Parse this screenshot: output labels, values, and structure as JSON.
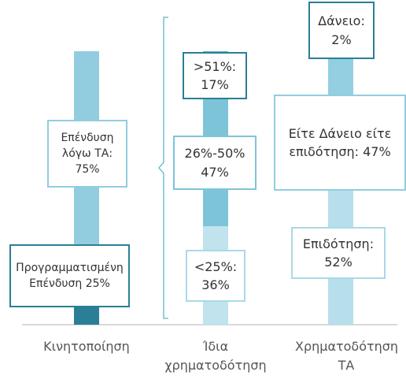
{
  "chart_data": {
    "type": "stacked_bar",
    "categories": [
      "Κινητοποίηση",
      "Ίδια χρηματοδότηση",
      "Χρηματοδότηση ΤΑ"
    ],
    "bars": [
      {
        "segments": [
          {
            "name": "Προγραμματισμένη Επένδυση",
            "value": 25,
            "value_label": "25%",
            "color": "#2a7f96"
          },
          {
            "name": "Επένδυση λόγω ΤΑ:",
            "value": 75,
            "value_label": "75%",
            "color": "#92cddf"
          }
        ]
      },
      {
        "segments": [
          {
            "name": "<25%:",
            "value": 36,
            "value_label": "36%",
            "color": "#c0e3ed"
          },
          {
            "name": "26%-50%",
            "value": 47,
            "value_label": "47%",
            "color": "#7ec4d8"
          },
          {
            "name": ">51%:",
            "value": 17,
            "value_label": "17%",
            "color": "#62b2ca"
          }
        ]
      },
      {
        "segments": [
          {
            "name": "Επιδότηση:",
            "value": 52,
            "value_label": "52%",
            "color": "#b6dfeb"
          },
          {
            "name": "Είτε Δάνειο είτε επιδότηση:",
            "value": 47,
            "value_label": "47%",
            "color": "#93cfe0"
          },
          {
            "name": "Δάνειο:",
            "value": 2,
            "value_label": "2%",
            "color": "#62b2ca"
          }
        ]
      }
    ]
  }
}
